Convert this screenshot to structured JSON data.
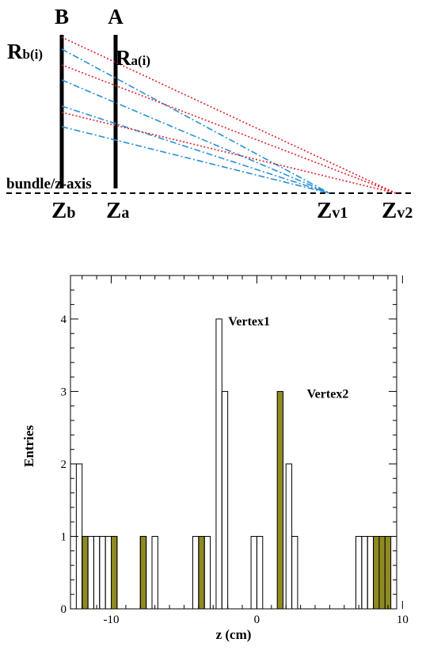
{
  "diagram": {
    "detector_b_label": "B",
    "detector_a_label": "A",
    "rb_main": "R",
    "rb_sub": "b(i)",
    "ra_main": "R",
    "ra_sub": "a(i)",
    "axis_label": "bundle/z-axis",
    "zb_main": "Z",
    "zb_sub": "b",
    "za_main": "Z",
    "za_sub": "a",
    "zv1_main": "Z",
    "zv1_sub": "v1",
    "zv2_main": "Z",
    "zv2_sub": "v2",
    "colors": {
      "vertex1_tracks": "#2a8fd6",
      "vertex2_tracks": "#e0202a",
      "detector": "#000000"
    }
  },
  "chart_data": {
    "type": "bar",
    "xlabel": "z (cm)",
    "ylabel": "Entries",
    "xlim": [
      -12.8,
      9.6
    ],
    "ylim": [
      0,
      4.6
    ],
    "xticks": [
      -10,
      0,
      10
    ],
    "xtick_labels": [
      "-10",
      "0",
      "10"
    ],
    "yticks": [
      0,
      1,
      2,
      3,
      4
    ],
    "ytick_labels": [
      "0",
      "1",
      "2",
      "3",
      "4"
    ],
    "bin_width": 0.4,
    "series": [
      {
        "name": "Vertex1",
        "fill": "none",
        "bins": [
          {
            "x": -12.4,
            "y": 2
          },
          {
            "x": -12.0,
            "y": 1
          },
          {
            "x": -11.6,
            "y": 1
          },
          {
            "x": -11.2,
            "y": 1
          },
          {
            "x": -10.8,
            "y": 1
          },
          {
            "x": -10.4,
            "y": 1
          },
          {
            "x": -10.0,
            "y": 1
          },
          {
            "x": -8.0,
            "y": 1
          },
          {
            "x": -7.2,
            "y": 1
          },
          {
            "x": -4.4,
            "y": 1
          },
          {
            "x": -3.6,
            "y": 1
          },
          {
            "x": -2.8,
            "y": 4
          },
          {
            "x": -2.4,
            "y": 3
          },
          {
            "x": -0.4,
            "y": 1
          },
          {
            "x": 0.0,
            "y": 1
          },
          {
            "x": 2.0,
            "y": 2
          },
          {
            "x": 2.4,
            "y": 1
          },
          {
            "x": 6.8,
            "y": 1
          },
          {
            "x": 7.2,
            "y": 1
          },
          {
            "x": 7.6,
            "y": 1
          }
        ]
      },
      {
        "name": "Vertex2",
        "fill": "#8f8a22",
        "bins": [
          {
            "x": -12.0,
            "y": 1
          },
          {
            "x": -10.0,
            "y": 1
          },
          {
            "x": -8.0,
            "y": 1
          },
          {
            "x": -4.0,
            "y": 1
          },
          {
            "x": 1.4,
            "y": 3
          },
          {
            "x": 8.0,
            "y": 1
          },
          {
            "x": 8.4,
            "y": 1
          },
          {
            "x": 8.8,
            "y": 1
          }
        ]
      }
    ],
    "annotations": [
      {
        "text": "Vertex1",
        "x": -2.4,
        "y": 4.0
      },
      {
        "text": "Vertex2",
        "x": 3.0,
        "y": 3.0
      }
    ]
  }
}
